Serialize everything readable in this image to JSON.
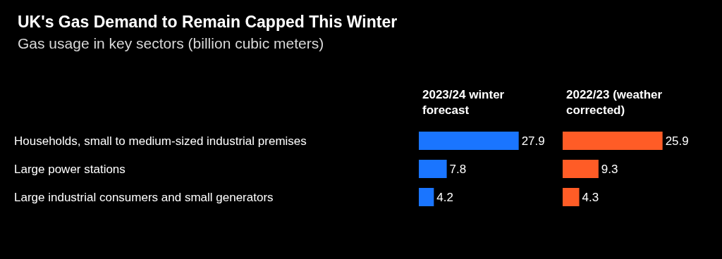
{
  "chart_data": [
    {
      "type": "bar",
      "orientation": "horizontal",
      "title": "UK's Gas Demand to Remain Capped This Winter",
      "subtitle": "Gas usage in key sectors (billion cubic meters)",
      "categories": [
        "Households, small to medium-sized industrial premises",
        "Large power stations",
        "Large industrial consumers and small generators"
      ],
      "series": [
        {
          "name": "2023/24 winter\nforecast",
          "color": "#1a75ff",
          "values": [
            27.9,
            7.8,
            4.2
          ]
        }
      ],
      "data_labels": true
    },
    {
      "type": "bar",
      "orientation": "horizontal",
      "categories": [
        null,
        null,
        null
      ],
      "series": [
        {
          "name": "2022/23 (weather\ncorrected)",
          "color": "#ff5c26",
          "values": [
            25.9,
            9.3,
            4.3
          ]
        }
      ],
      "data_labels": true
    }
  ]
}
